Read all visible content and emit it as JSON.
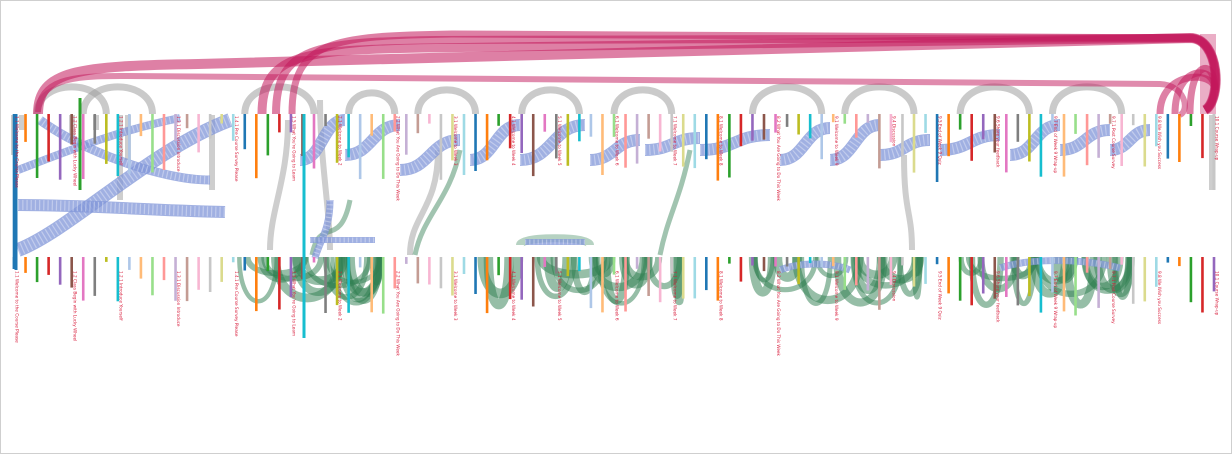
{
  "diagram": {
    "type": "arc-flow",
    "colors": {
      "background": "#ffffff",
      "border": "#cfcfcf",
      "label": "#d81b3a",
      "flow_blue": "#8096d8",
      "flow_green": "#2e7d4f",
      "flow_gray": "#9e9e9e",
      "flow_pink": "#c2185b"
    },
    "legible_labels": [
      "1.1 Welcome to the Course Please",
      "1.2 Class Begin with Lucky Wheel",
      "1.2.1 Introduce Yourself",
      "1.3.1 Discussion Introduce",
      "1.4.1 Pre Course Survey Please",
      "1.5 What You're Going to Learn",
      "2.1 Welcome to Week 2",
      "2.2 What You Are Going to Do This Week",
      "3.1 Welcome to Week 3",
      "4.1 Welcome to Week 4",
      "5.1 Welcome to Week 5",
      "6.1 Welcome to Week 6",
      "7.1 Welcome to Week 7",
      "8.1 Welcome to Week 8",
      "8.2 What You Are Going to Do This Week",
      "9.1 Welcome to Week 9",
      "9.4 Discussion",
      "9.5 End of Week 9 Quiz",
      "9.6 Share your feedback",
      "9.7 End of Week 9 Wrap-up",
      "9.7.1 Post Course Survey",
      "9.8 We Wish you Success",
      "10.1 Course Wrap-up"
    ]
  }
}
